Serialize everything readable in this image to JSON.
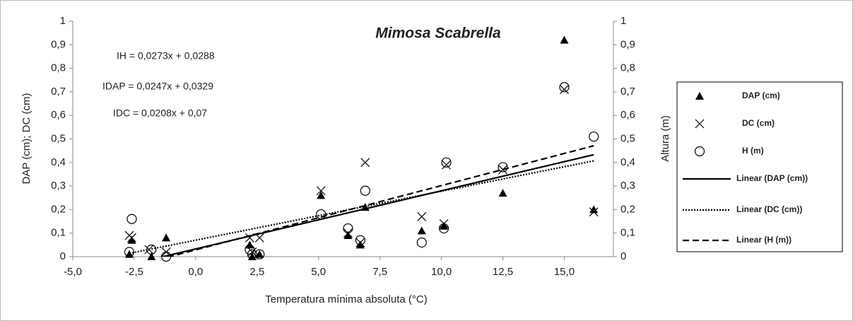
{
  "chart_data": {
    "type": "scatter",
    "title": "Mimosa Scabrella",
    "x_label": "Temperatura mínima absoluta (°C)",
    "y_label": "DAP (cm); DC (cm)",
    "y2_label": "Altura (m)",
    "annotations": [
      "IH = 0,0273x + 0,0288",
      "IDAP = 0,0247x + 0,0329",
      "IDC = 0,0208x + 0,07"
    ],
    "xlim": [
      -5,
      17
    ],
    "xticks": [
      {
        "value": -5,
        "label": "-5,0"
      },
      {
        "value": -2.5,
        "label": "-2,5"
      },
      {
        "value": 0,
        "label": "0,0"
      },
      {
        "value": 2.5,
        "label": "2,5"
      },
      {
        "value": 5,
        "label": "5,0"
      },
      {
        "value": 7.5,
        "label": "7,5"
      },
      {
        "value": 10,
        "label": "10,0"
      },
      {
        "value": 12.5,
        "label": "12,5"
      },
      {
        "value": 15,
        "label": "15,0"
      }
    ],
    "ylim": [
      0,
      1
    ],
    "yticks": [
      0,
      {
        "value": 0.1,
        "label": "0,1"
      },
      {
        "value": 0.2,
        "label": "0,2"
      },
      {
        "value": 0.3,
        "label": "0,3"
      },
      {
        "value": 0.4,
        "label": "0,4"
      },
      {
        "value": 0.5,
        "label": "0,5"
      },
      {
        "value": 0.6,
        "label": "0,6"
      },
      {
        "value": 0.7,
        "label": "0,7"
      },
      {
        "value": 0.8,
        "label": "0,8"
      },
      {
        "value": 0.9,
        "label": "0,9"
      },
      1
    ],
    "y2lim": [
      0,
      1
    ],
    "y2ticks": [
      0,
      {
        "value": 0.1,
        "label": "0,1"
      },
      {
        "value": 0.2,
        "label": "0,2"
      },
      {
        "value": 0.3,
        "label": "0,3"
      },
      {
        "value": 0.4,
        "label": "0,4"
      },
      {
        "value": 0.5,
        "label": "0,5"
      },
      {
        "value": 0.6,
        "label": "0,6"
      },
      {
        "value": 0.7,
        "label": "0,7"
      },
      {
        "value": 0.8,
        "label": "0,8"
      },
      {
        "value": 0.9,
        "label": "0,9"
      },
      1
    ],
    "series": [
      {
        "name": "DAP (cm)",
        "marker": "triangle",
        "color": "#000000",
        "x": [
          -2.7,
          -2.6,
          -1.8,
          -1.2,
          2.2,
          2.3,
          2.6,
          5.1,
          6.2,
          6.7,
          6.9,
          9.2,
          10.1,
          12.5,
          15.0,
          16.2
        ],
        "values": [
          0.01,
          0.07,
          0.0,
          0.08,
          0.05,
          0.0,
          0.01,
          0.26,
          0.09,
          0.05,
          0.21,
          0.11,
          0.13,
          0.27,
          0.92,
          0.2
        ]
      },
      {
        "name": "DC (cm)",
        "marker": "x",
        "color": "#000000",
        "x": [
          -2.7,
          -2.6,
          -1.9,
          -1.2,
          2.2,
          2.3,
          2.6,
          5.1,
          6.2,
          6.7,
          6.9,
          9.2,
          10.1,
          10.2,
          12.5,
          15.0,
          16.2
        ],
        "values": [
          0.09,
          0.08,
          0.03,
          0.02,
          0.08,
          0.02,
          0.08,
          0.28,
          0.1,
          0.06,
          0.4,
          0.17,
          0.14,
          0.39,
          0.37,
          0.71,
          0.19
        ]
      },
      {
        "name": "H (m)",
        "marker": "circle",
        "color": "#000000",
        "axis": "y2",
        "x": [
          -2.7,
          -2.6,
          -1.8,
          -1.2,
          2.2,
          2.3,
          2.6,
          5.1,
          6.2,
          6.7,
          6.9,
          9.2,
          10.1,
          10.2,
          12.5,
          15.0,
          16.2
        ],
        "values": [
          0.02,
          0.16,
          0.03,
          0.0,
          0.03,
          0.01,
          0.01,
          0.18,
          0.12,
          0.07,
          0.28,
          0.06,
          0.12,
          0.4,
          0.38,
          0.72,
          0.51
        ]
      }
    ],
    "trendlines": [
      {
        "name": "Linear (DAP (cm))",
        "series": 0,
        "slope": 0.0247,
        "intercept": 0.0329,
        "dash": "solid"
      },
      {
        "name": "Linear (DC (cm))",
        "series": 1,
        "slope": 0.0208,
        "intercept": 0.07,
        "dash": "dotted"
      },
      {
        "name": "Linear (H (m))",
        "series": 2,
        "slope": 0.0273,
        "intercept": 0.0288,
        "dash": "dashed"
      }
    ]
  }
}
